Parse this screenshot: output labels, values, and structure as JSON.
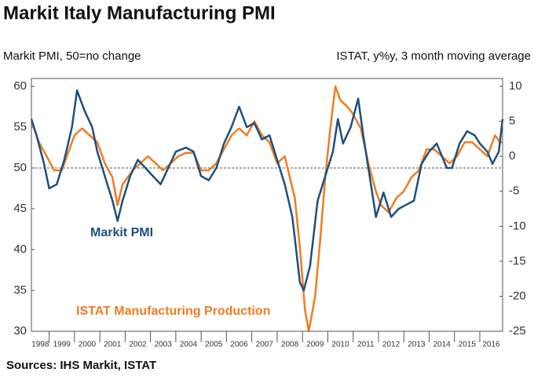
{
  "chart_data": {
    "type": "line",
    "title": "Markit Italy Manufacturing PMI",
    "y_label": "Markit PMI, 50=no change",
    "y2_label": "ISTAT, y%y, 3 month moving average",
    "source": "Sources: IHS Markit, ISTAT",
    "xlim": [
      1998.3,
      2016.9
    ],
    "xticks": [
      1998,
      1999,
      2000,
      2001,
      2002,
      2003,
      2004,
      2005,
      2006,
      2007,
      2008,
      2009,
      2010,
      2011,
      2012,
      2013,
      2014,
      2015,
      2016
    ],
    "ylim": [
      30,
      60
    ],
    "yticks": [
      30,
      35,
      40,
      45,
      50,
      55,
      60
    ],
    "y2lim": [
      -25,
      10
    ],
    "y2ticks": [
      -25,
      -20,
      -15,
      -10,
      -5,
      0,
      5,
      10
    ],
    "reference_line": 50,
    "series": [
      {
        "name": "Markit PMI",
        "color": "#1d4f80",
        "x": [
          1998.3,
          1998.5,
          1998.8,
          1999.0,
          1999.3,
          1999.6,
          1999.9,
          2000.1,
          2000.4,
          2000.7,
          2000.9,
          2001.2,
          2001.5,
          2001.7,
          2001.9,
          2002.2,
          2002.5,
          2002.8,
          2003.1,
          2003.4,
          2003.7,
          2004.0,
          2004.4,
          2004.7,
          2005.0,
          2005.3,
          2005.6,
          2005.9,
          2006.2,
          2006.5,
          2006.8,
          2007.1,
          2007.4,
          2007.7,
          2008.0,
          2008.3,
          2008.6,
          2008.9,
          2009.05,
          2009.3,
          2009.6,
          2009.9,
          2010.2,
          2010.4,
          2010.6,
          2010.9,
          2011.2,
          2011.4,
          2011.7,
          2011.9,
          2012.2,
          2012.5,
          2012.8,
          2013.1,
          2013.4,
          2013.7,
          2014.0,
          2014.3,
          2014.7,
          2014.9,
          2015.2,
          2015.5,
          2015.8,
          2016.0,
          2016.3,
          2016.5,
          2016.75,
          2016.9
        ],
        "values": [
          56,
          54,
          50.5,
          47.5,
          48,
          51,
          55,
          59.5,
          57,
          55,
          52,
          49,
          46,
          43.5,
          46,
          49,
          51,
          50,
          49,
          48,
          50,
          52,
          52.5,
          52,
          49,
          48.5,
          50,
          53,
          55,
          57.5,
          55,
          55.5,
          53.5,
          54,
          51,
          48,
          44,
          36,
          35,
          38,
          46,
          49,
          52,
          56,
          53,
          55,
          58.5,
          54,
          48,
          44,
          47,
          44,
          45,
          45.5,
          46,
          50.5,
          52,
          53,
          50,
          50,
          53,
          54.5,
          54,
          53,
          52,
          50.5,
          52,
          56
        ]
      },
      {
        "name": "ISTAT Manufacturing Production",
        "color": "#f47b20",
        "axis": "y2",
        "x": [
          1998.3,
          1998.6,
          1998.9,
          1999.2,
          1999.5,
          1999.8,
          2000.0,
          2000.3,
          2000.6,
          2000.9,
          2001.2,
          2001.5,
          2001.7,
          2001.9,
          2002.3,
          2002.6,
          2002.9,
          2003.2,
          2003.5,
          2003.8,
          2004.1,
          2004.4,
          2004.7,
          2005.0,
          2005.3,
          2005.6,
          2005.9,
          2006.2,
          2006.5,
          2006.8,
          2007.1,
          2007.4,
          2007.7,
          2008.0,
          2008.3,
          2008.5,
          2008.7,
          2008.9,
          2009.1,
          2009.25,
          2009.5,
          2009.7,
          2009.9,
          2010.1,
          2010.3,
          2010.5,
          2010.8,
          2011.0,
          2011.3,
          2011.6,
          2011.9,
          2012.1,
          2012.4,
          2012.7,
          2013.0,
          2013.3,
          2013.6,
          2013.9,
          2014.2,
          2014.5,
          2014.8,
          2015.1,
          2015.4,
          2015.7,
          2016.0,
          2016.3,
          2016.6,
          2016.8,
          2016.9
        ],
        "values": [
          5,
          2,
          0,
          -2,
          -2,
          1,
          3,
          4,
          3,
          2,
          -1,
          -3,
          -7,
          -4,
          -2,
          -1,
          0,
          -1,
          -2,
          -1,
          0,
          0.5,
          0.5,
          -2,
          -2,
          -1,
          1,
          3,
          4,
          3,
          5,
          3,
          2,
          -1,
          0,
          -3,
          -6,
          -13,
          -22,
          -25,
          -20,
          -12,
          -3,
          4,
          10,
          8,
          7,
          6,
          4,
          -1,
          -5,
          -7,
          -8,
          -6,
          -5,
          -3,
          -2,
          1,
          1,
          0,
          -1,
          0,
          2,
          2,
          1,
          0,
          3,
          2,
          2
        ]
      }
    ]
  }
}
